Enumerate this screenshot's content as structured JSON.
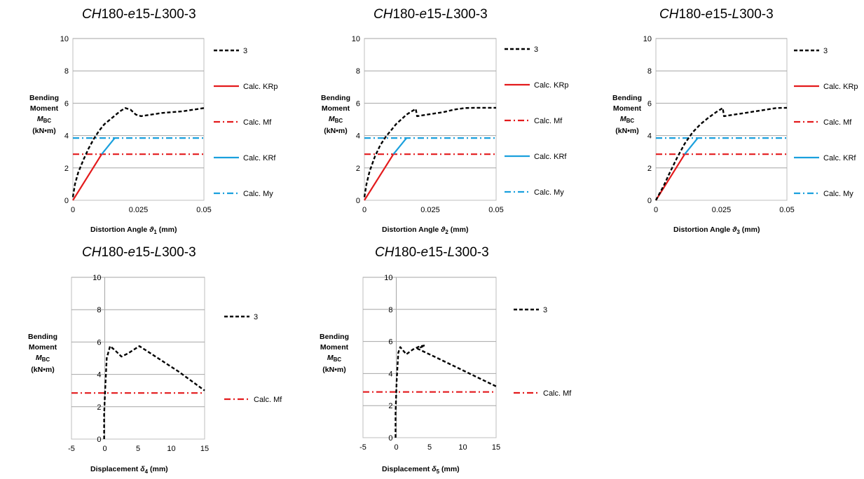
{
  "chart_data": [
    {
      "type": "line",
      "title": {
        "prefix": "CH",
        "p1": "180-",
        "e": "e",
        "p2": "15-",
        "l": "L",
        "p3": "300-3"
      },
      "ylabel": {
        "line1": "Bending",
        "line2": "Moment",
        "sym": "M",
        "sub": "BC",
        "unit": "(kN•m)"
      },
      "xlabel": {
        "pre": "Distortion Angle ",
        "sym": "ϑ",
        "sub": "1",
        "post": " (mm)"
      },
      "xlim": [
        0,
        0.05
      ],
      "ylim": [
        0,
        10
      ],
      "xticks": [
        0,
        0.025,
        0.05
      ],
      "xtick_labels": [
        "0",
        "0.025",
        "0.05"
      ],
      "yticks": [
        0,
        2,
        4,
        6,
        8,
        10
      ],
      "ytick_labels": [
        "0",
        "2",
        "4",
        "6",
        "8",
        "10"
      ],
      "grid": "horizontal",
      "series": [
        {
          "name": "3",
          "color": "#000000",
          "style": "dashed-bold",
          "x": [
            0,
            0.0008,
            0.002,
            0.004,
            0.006,
            0.008,
            0.01,
            0.012,
            0.015,
            0.018,
            0.02,
            0.022,
            0.024,
            0.026,
            0.028,
            0.03,
            0.034,
            0.038,
            0.042,
            0.046,
            0.05
          ],
          "y": [
            0.2,
            1.0,
            1.7,
            2.5,
            3.2,
            3.8,
            4.3,
            4.7,
            5.1,
            5.5,
            5.7,
            5.6,
            5.3,
            5.2,
            5.25,
            5.3,
            5.4,
            5.45,
            5.5,
            5.6,
            5.7
          ]
        },
        {
          "name": "Calc. KRp",
          "color": "#e31a1c",
          "style": "solid",
          "x": [
            0,
            0.011
          ],
          "y": [
            0,
            2.85
          ]
        },
        {
          "name": "Calc. Mf",
          "color": "#e31a1c",
          "style": "dashdot",
          "x": [
            0,
            0.05
          ],
          "y": [
            2.85,
            2.85
          ]
        },
        {
          "name": "Calc. KRf",
          "color": "#1aa0dd",
          "style": "solid",
          "x": [
            0.011,
            0.016
          ],
          "y": [
            2.85,
            3.85
          ]
        },
        {
          "name": "Calc. My",
          "color": "#1aa0dd",
          "style": "dashdot",
          "x": [
            0,
            0.05
          ],
          "y": [
            3.85,
            3.85
          ]
        }
      ]
    },
    {
      "type": "line",
      "title": {
        "prefix": "CH",
        "p1": "180-",
        "e": "e",
        "p2": "15-",
        "l": "L",
        "p3": "300-3"
      },
      "ylabel": {
        "line1": "Bending",
        "line2": "Moment",
        "sym": "M",
        "sub": "BC",
        "unit": "(kN•m)"
      },
      "xlabel": {
        "pre": "Distortion Angle ",
        "sym": "ϑ",
        "sub": "2",
        "post": " (mm)"
      },
      "xlim": [
        0,
        0.05
      ],
      "ylim": [
        0,
        10
      ],
      "xticks": [
        0,
        0.025,
        0.05
      ],
      "xtick_labels": [
        "0",
        "0.025",
        "0.05"
      ],
      "yticks": [
        0,
        2,
        4,
        6,
        8,
        10
      ],
      "ytick_labels": [
        "0",
        "2",
        "4",
        "6",
        "8",
        "10"
      ],
      "grid": "horizontal",
      "series": [
        {
          "name": "3",
          "color": "#000000",
          "style": "dashed-bold",
          "x": [
            0,
            0.0008,
            0.002,
            0.004,
            0.006,
            0.008,
            0.01,
            0.012,
            0.014,
            0.016,
            0.018,
            0.0195,
            0.02,
            0.022,
            0.026,
            0.03,
            0.034,
            0.038,
            0.042,
            0.046,
            0.05
          ],
          "y": [
            0.2,
            1.0,
            1.8,
            2.7,
            3.4,
            3.9,
            4.3,
            4.7,
            5.0,
            5.3,
            5.5,
            5.65,
            5.2,
            5.25,
            5.35,
            5.45,
            5.6,
            5.7,
            5.72,
            5.72,
            5.72
          ]
        },
        {
          "name": "Calc. KRp",
          "color": "#e31a1c",
          "style": "solid",
          "x": [
            0,
            0.011
          ],
          "y": [
            0,
            2.85
          ]
        },
        {
          "name": "Calc. Mf",
          "color": "#e31a1c",
          "style": "dashdot",
          "x": [
            0,
            0.05
          ],
          "y": [
            2.85,
            2.85
          ]
        },
        {
          "name": "Calc. KRf",
          "color": "#1aa0dd",
          "style": "solid",
          "x": [
            0.011,
            0.016
          ],
          "y": [
            2.85,
            3.85
          ]
        },
        {
          "name": "Calc. My",
          "color": "#1aa0dd",
          "style": "dashdot",
          "x": [
            0,
            0.05
          ],
          "y": [
            3.85,
            3.85
          ]
        }
      ]
    },
    {
      "type": "line",
      "title": {
        "prefix": "CH",
        "p1": "180-",
        "e": "e",
        "p2": "15-",
        "l": "L",
        "p3": "300-3"
      },
      "ylabel": {
        "line1": "Bending",
        "line2": "Moment",
        "sym": "M",
        "sub": "BC",
        "unit": "(kN•m)"
      },
      "xlabel": {
        "pre": "Distortion Angle ",
        "sym": "ϑ",
        "sub": "3",
        "post": " (mm)"
      },
      "xlim": [
        0,
        0.05
      ],
      "ylim": [
        0,
        10
      ],
      "xticks": [
        0,
        0.025,
        0.05
      ],
      "xtick_labels": [
        "0",
        "0.025",
        "0.05"
      ],
      "yticks": [
        0,
        2,
        4,
        6,
        8,
        10
      ],
      "ytick_labels": [
        "0",
        "2",
        "4",
        "6",
        "8",
        "10"
      ],
      "grid": "horizontal",
      "series": [
        {
          "name": "3",
          "color": "#000000",
          "style": "dashed-bold",
          "x": [
            0,
            0.001,
            0.003,
            0.005,
            0.008,
            0.011,
            0.014,
            0.017,
            0.02,
            0.023,
            0.0255,
            0.026,
            0.03,
            0.034,
            0.038,
            0.042,
            0.046,
            0.05
          ],
          "y": [
            0,
            0.3,
            0.9,
            1.6,
            2.6,
            3.5,
            4.2,
            4.7,
            5.1,
            5.45,
            5.7,
            5.2,
            5.3,
            5.4,
            5.5,
            5.6,
            5.7,
            5.72
          ]
        },
        {
          "name": "Calc. KRp",
          "color": "#e31a1c",
          "style": "solid",
          "x": [
            0,
            0.011
          ],
          "y": [
            0,
            2.85
          ]
        },
        {
          "name": "Calc. Mf",
          "color": "#e31a1c",
          "style": "dashdot",
          "x": [
            0,
            0.05
          ],
          "y": [
            2.85,
            2.85
          ]
        },
        {
          "name": "Calc. KRf",
          "color": "#1aa0dd",
          "style": "solid",
          "x": [
            0.011,
            0.016
          ],
          "y": [
            2.85,
            3.85
          ]
        },
        {
          "name": "Calc. My",
          "color": "#1aa0dd",
          "style": "dashdot",
          "x": [
            0,
            0.05
          ],
          "y": [
            3.85,
            3.85
          ]
        }
      ]
    },
    {
      "type": "line",
      "title": {
        "prefix": "CH",
        "p1": "180-",
        "e": "e",
        "p2": "15-",
        "l": "L",
        "p3": "300-3"
      },
      "ylabel": {
        "line1": "Bending",
        "line2": "Moment",
        "sym": "M",
        "sub": "BC",
        "unit": "(kN•m)"
      },
      "xlabel": {
        "pre": "Displacement ",
        "sym": "δ",
        "sub": "4",
        "post": " (mm)"
      },
      "xlim": [
        -5,
        15
      ],
      "ylim": [
        0,
        10
      ],
      "xticks": [
        -5,
        0,
        5,
        10,
        15
      ],
      "xtick_labels": [
        "-5",
        "0",
        "5",
        "10",
        "15"
      ],
      "yticks": [
        0,
        2,
        4,
        6,
        8,
        10
      ],
      "ytick_labels": [
        "0",
        "2",
        "4",
        "6",
        "8",
        "10"
      ],
      "grid": "horizontal",
      "series": [
        {
          "name": "3",
          "color": "#000000",
          "style": "dashed-bold",
          "x": [
            -0.1,
            -0.1,
            0.05,
            0.3,
            0.8,
            1.5,
            2.5,
            3.5,
            5.2,
            8,
            11,
            13,
            15
          ],
          "y": [
            0,
            1.5,
            3.0,
            5.0,
            5.75,
            5.5,
            5.1,
            5.3,
            5.75,
            5.0,
            4.2,
            3.6,
            3.0
          ]
        },
        {
          "name": "Calc. Mf",
          "color": "#e31a1c",
          "style": "dashdot",
          "x": [
            -5,
            15
          ],
          "y": [
            2.85,
            2.85
          ]
        }
      ]
    },
    {
      "type": "line",
      "title": {
        "prefix": "CH",
        "p1": "180-",
        "e": "e",
        "p2": "15-",
        "l": "L",
        "p3": "300-3"
      },
      "ylabel": {
        "line1": "Bending",
        "line2": "Moment",
        "sym": "M",
        "sub": "BC",
        "unit": "(kN•m)"
      },
      "xlabel": {
        "pre": "Displacement ",
        "sym": "δ",
        "sub": "5",
        "post": " (mm)"
      },
      "xlim": [
        -5,
        15
      ],
      "ylim": [
        0,
        10
      ],
      "xticks": [
        -5,
        0,
        5,
        10,
        15
      ],
      "xtick_labels": [
        "-5",
        "0",
        "5",
        "10",
        "15"
      ],
      "yticks": [
        0,
        2,
        4,
        6,
        8,
        10
      ],
      "ytick_labels": [
        "0",
        "2",
        "4",
        "6",
        "8",
        "10"
      ],
      "grid": "horizontal",
      "series": [
        {
          "name": "3",
          "color": "#000000",
          "style": "dashed-bold",
          "x": [
            -0.1,
            -0.1,
            0.05,
            0.3,
            0.6,
            1.5,
            2.5,
            3.5,
            4.3,
            3.2,
            6,
            9,
            12,
            15
          ],
          "y": [
            0,
            1.5,
            3.5,
            5.3,
            5.65,
            5.2,
            5.5,
            5.7,
            5.75,
            5.55,
            5.0,
            4.4,
            3.8,
            3.2
          ]
        },
        {
          "name": "Calc. Mf",
          "color": "#e31a1c",
          "style": "dashdot",
          "x": [
            -5,
            15
          ],
          "y": [
            2.85,
            2.85
          ]
        }
      ]
    }
  ]
}
